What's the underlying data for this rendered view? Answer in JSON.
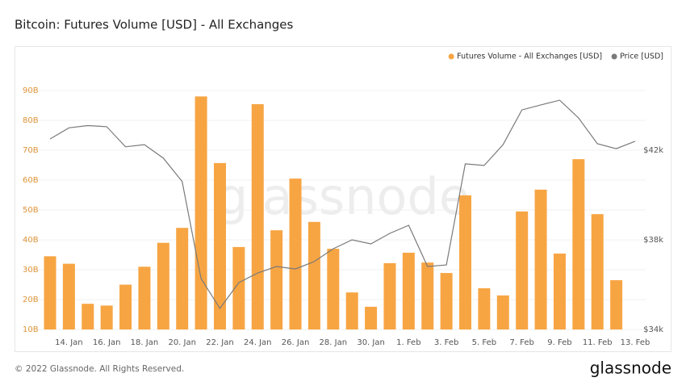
{
  "chart_data": {
    "type": "bar",
    "title": "Bitcoin: Futures Volume [USD] - All Exchanges",
    "watermark": "glassnode",
    "copyright": "© 2022 Glassnode. All Rights Reserved.",
    "brand": "glassnode",
    "categories": [
      null,
      "14. Jan",
      null,
      "16. Jan",
      null,
      "18. Jan",
      null,
      "20. Jan",
      null,
      "22. Jan",
      null,
      "24. Jan",
      null,
      "26. Jan",
      null,
      "28. Jan",
      null,
      "30. Jan",
      null,
      "1. Feb",
      null,
      "3. Feb",
      null,
      "5. Feb",
      null,
      "7. Feb",
      null,
      "9. Feb",
      null,
      "11. Feb",
      null,
      "13. Feb"
    ],
    "series": [
      {
        "name": "Futures Volume - All Exchanges [USD]",
        "color": "#f7a543",
        "type": "bar",
        "values": [
          34.5,
          32,
          18.6,
          18,
          25,
          31,
          39,
          44,
          88,
          65.7,
          37.6,
          85.4,
          43.2,
          60.5,
          46,
          37,
          22.4,
          17.6,
          32.2,
          35.7,
          32.4,
          28.9,
          54.9,
          23.8,
          21.4,
          49.5,
          56.8,
          35.4,
          67,
          48.6,
          26.5,
          null
        ]
      },
      {
        "name": "Price [USD]",
        "color": "#7a7a7a",
        "type": "line",
        "axis": "y2",
        "values": [
          42500,
          43000,
          43100,
          43050,
          42150,
          42250,
          41650,
          40600,
          36270,
          34940,
          36090,
          36520,
          36810,
          36700,
          37030,
          37600,
          38000,
          37820,
          38290,
          38650,
          36810,
          36880,
          41390,
          41320,
          42250,
          43800,
          44020,
          44230,
          43440,
          42290,
          42070,
          42400
        ]
      }
    ],
    "ylim": [
      10,
      100
    ],
    "yticks": [
      {
        "value": 10,
        "label": "10B"
      },
      {
        "value": 20,
        "label": "20B"
      },
      {
        "value": 30,
        "label": "30B"
      },
      {
        "value": 40,
        "label": "40B"
      },
      {
        "value": 50,
        "label": "50B"
      },
      {
        "value": 60,
        "label": "60B"
      },
      {
        "value": 70,
        "label": "70B"
      },
      {
        "value": 80,
        "label": "80B"
      },
      {
        "value": 90,
        "label": "90B"
      }
    ],
    "y2lim": [
      34000,
      46000
    ],
    "y2ticks": [
      {
        "value": 34000,
        "label": "$34k"
      },
      {
        "value": 38000,
        "label": "$38k"
      },
      {
        "value": 42000,
        "label": "$42k"
      }
    ],
    "grid": true,
    "legend": "top-right"
  }
}
